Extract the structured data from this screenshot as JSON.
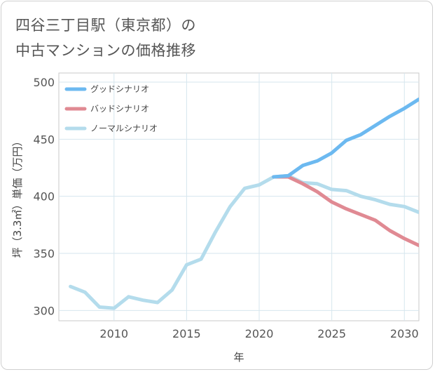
{
  "title_line1": "四谷三丁目駅（東京都）の",
  "title_line2": "中古マンションの価格推移",
  "chart_data": {
    "type": "line",
    "xlabel": "年",
    "ylabel": "坪（3.3㎡）単価（万円）",
    "xlim": [
      2006.2,
      2031
    ],
    "ylim": [
      291,
      508
    ],
    "xticks": [
      2010,
      2015,
      2020,
      2025,
      2030
    ],
    "yticks": [
      300,
      350,
      400,
      450,
      500
    ],
    "grid": true,
    "legend_position": "top-left",
    "series": [
      {
        "name": "グッドシナリオ",
        "color": "#6cb9f0",
        "x": [
          2021,
          2022,
          2023,
          2024,
          2025,
          2026,
          2027,
          2028,
          2029,
          2030,
          2031
        ],
        "values": [
          417,
          418,
          427,
          431,
          438,
          449,
          454,
          462,
          470,
          477,
          485
        ]
      },
      {
        "name": "バッドシナリオ",
        "color": "#e08a93",
        "x": [
          2021,
          2022,
          2023,
          2024,
          2025,
          2026,
          2027,
          2028,
          2029,
          2030,
          2031
        ],
        "values": [
          417,
          417,
          411,
          404,
          395,
          389,
          384,
          379,
          370,
          363,
          357
        ]
      },
      {
        "name": "ノーマルシナリオ",
        "color": "#b4dcec",
        "x": [
          2007,
          2008,
          2009,
          2010,
          2011,
          2012,
          2013,
          2014,
          2015,
          2016,
          2017,
          2018,
          2019,
          2020,
          2021,
          2022,
          2023,
          2024,
          2025,
          2026,
          2027,
          2028,
          2029,
          2030,
          2031
        ],
        "values": [
          321,
          316,
          303,
          302,
          312,
          309,
          307,
          318,
          340,
          345,
          369,
          391,
          407,
          410,
          417,
          418,
          412,
          411,
          406,
          405,
          400,
          397,
          393,
          391,
          386
        ]
      }
    ]
  }
}
